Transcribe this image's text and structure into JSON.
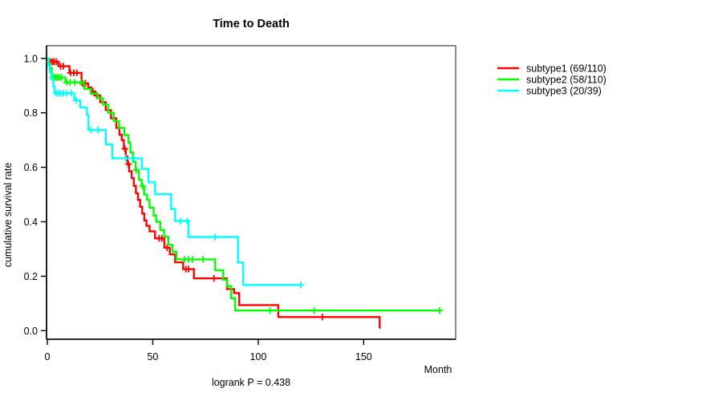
{
  "chart_data": {
    "type": "line",
    "variant": "kaplan-meier-step",
    "title": "Time to Death",
    "xlabel": "Month",
    "ylabel": "cumulative survival rate",
    "footer": "logrank P = 0.438",
    "xlim": [
      0,
      188
    ],
    "ylim": [
      0,
      1.0
    ],
    "x_ticks": [
      0,
      50,
      100,
      150
    ],
    "y_ticks": [
      0.0,
      0.2,
      0.4,
      0.6,
      0.8,
      1.0
    ],
    "grid": false,
    "legend_position": "right-outside",
    "series": [
      {
        "name": "subtype1 (69/110)",
        "label": "subtype1",
        "events": 69,
        "n": 110,
        "color": "#ff0000",
        "steps": [
          [
            0,
            1.0
          ],
          [
            0.6,
            0.988
          ],
          [
            5.3,
            0.971
          ],
          [
            10.5,
            0.947
          ],
          [
            16.2,
            0.908
          ],
          [
            19.4,
            0.893
          ],
          [
            21.0,
            0.878
          ],
          [
            22.6,
            0.864
          ],
          [
            25.1,
            0.839
          ],
          [
            27.7,
            0.81
          ],
          [
            30.2,
            0.78
          ],
          [
            32.7,
            0.745
          ],
          [
            34.2,
            0.72
          ],
          [
            35.3,
            0.7
          ],
          [
            36.3,
            0.668
          ],
          [
            37.2,
            0.64
          ],
          [
            38.0,
            0.612
          ],
          [
            38.8,
            0.585
          ],
          [
            40.0,
            0.56
          ],
          [
            41.0,
            0.532
          ],
          [
            42.0,
            0.505
          ],
          [
            43.0,
            0.48
          ],
          [
            44.0,
            0.455
          ],
          [
            45.0,
            0.43
          ],
          [
            46.0,
            0.405
          ],
          [
            47.0,
            0.385
          ],
          [
            48.5,
            0.365
          ],
          [
            51.1,
            0.339
          ],
          [
            55.5,
            0.305
          ],
          [
            58.1,
            0.28
          ],
          [
            60.6,
            0.251
          ],
          [
            64.4,
            0.226
          ],
          [
            69.5,
            0.192
          ],
          [
            85.2,
            0.153
          ],
          [
            88.5,
            0.138
          ],
          [
            91.0,
            0.094
          ],
          [
            109.5,
            0.05
          ],
          [
            157.6,
            0.008
          ]
        ],
        "censor_times": [
          0.9,
          1.7,
          2.5,
          3.3,
          4.3,
          6.3,
          7.6,
          11.0,
          12.5,
          14.0,
          16.8,
          18.0,
          21.6,
          23.4,
          36.8,
          38.4,
          53.0,
          54.3,
          56.8,
          65.7,
          66.9,
          79.0,
          130.4
        ],
        "end_time": 157.6,
        "end_drop": true
      },
      {
        "name": "subtype2 (58/110)",
        "label": "subtype2",
        "events": 58,
        "n": 110,
        "color": "#00ff00",
        "steps": [
          [
            0,
            1.0
          ],
          [
            0.7,
            0.982
          ],
          [
            1.4,
            0.964
          ],
          [
            2.1,
            0.947
          ],
          [
            2.3,
            0.93
          ],
          [
            8.6,
            0.912
          ],
          [
            17.5,
            0.888
          ],
          [
            20.7,
            0.87
          ],
          [
            23.8,
            0.854
          ],
          [
            26.4,
            0.83
          ],
          [
            28.9,
            0.8
          ],
          [
            31.5,
            0.77
          ],
          [
            34.0,
            0.745
          ],
          [
            36.5,
            0.718
          ],
          [
            38.5,
            0.69
          ],
          [
            39.4,
            0.655
          ],
          [
            40.6,
            0.62
          ],
          [
            41.9,
            0.59
          ],
          [
            43.4,
            0.555
          ],
          [
            44.7,
            0.53
          ],
          [
            45.9,
            0.5
          ],
          [
            47.3,
            0.48
          ],
          [
            48.5,
            0.452
          ],
          [
            50.4,
            0.423
          ],
          [
            51.6,
            0.4
          ],
          [
            53.5,
            0.37
          ],
          [
            55.4,
            0.345
          ],
          [
            57.4,
            0.315
          ],
          [
            59.3,
            0.29
          ],
          [
            61.2,
            0.262
          ],
          [
            79.6,
            0.222
          ],
          [
            83.4,
            0.187
          ],
          [
            85.3,
            0.163
          ],
          [
            87.2,
            0.119
          ],
          [
            89.1,
            0.074
          ]
        ],
        "censor_times": [
          2.6,
          3.4,
          4.2,
          5.0,
          5.8,
          6.8,
          9.2,
          10.8,
          13.0,
          16.0,
          42.2,
          45.3,
          65.0,
          66.9,
          68.8,
          73.8,
          105.6,
          126.5,
          186.0
        ],
        "end_time": 186.0,
        "end_drop": false
      },
      {
        "name": "subtype3 (20/39)",
        "label": "subtype3",
        "events": 20,
        "n": 39,
        "color": "#00ffff",
        "steps": [
          [
            0,
            1.0
          ],
          [
            0.5,
            0.974
          ],
          [
            1.2,
            0.949
          ],
          [
            2.0,
            0.923
          ],
          [
            2.8,
            0.897
          ],
          [
            3.5,
            0.872
          ],
          [
            12.8,
            0.846
          ],
          [
            15.6,
            0.82
          ],
          [
            18.8,
            0.792
          ],
          [
            19.5,
            0.737
          ],
          [
            27.7,
            0.684
          ],
          [
            30.8,
            0.633
          ],
          [
            44.8,
            0.594
          ],
          [
            47.9,
            0.545
          ],
          [
            51.1,
            0.501
          ],
          [
            58.7,
            0.447
          ],
          [
            60.6,
            0.403
          ],
          [
            66.9,
            0.344
          ],
          [
            90.4,
            0.25
          ],
          [
            92.9,
            0.168
          ]
        ],
        "censor_times": [
          4.2,
          5.2,
          6.3,
          7.6,
          9.2,
          11.4,
          13.7,
          20.7,
          24.0,
          37.2,
          41.0,
          63.1,
          66.3,
          79.5,
          120.2
        ],
        "end_time": 120.8,
        "end_drop": false
      }
    ]
  },
  "colors": {
    "background": "#ffffff",
    "axis": "#000000",
    "box": "#6e6e6e",
    "text": "#000000"
  }
}
